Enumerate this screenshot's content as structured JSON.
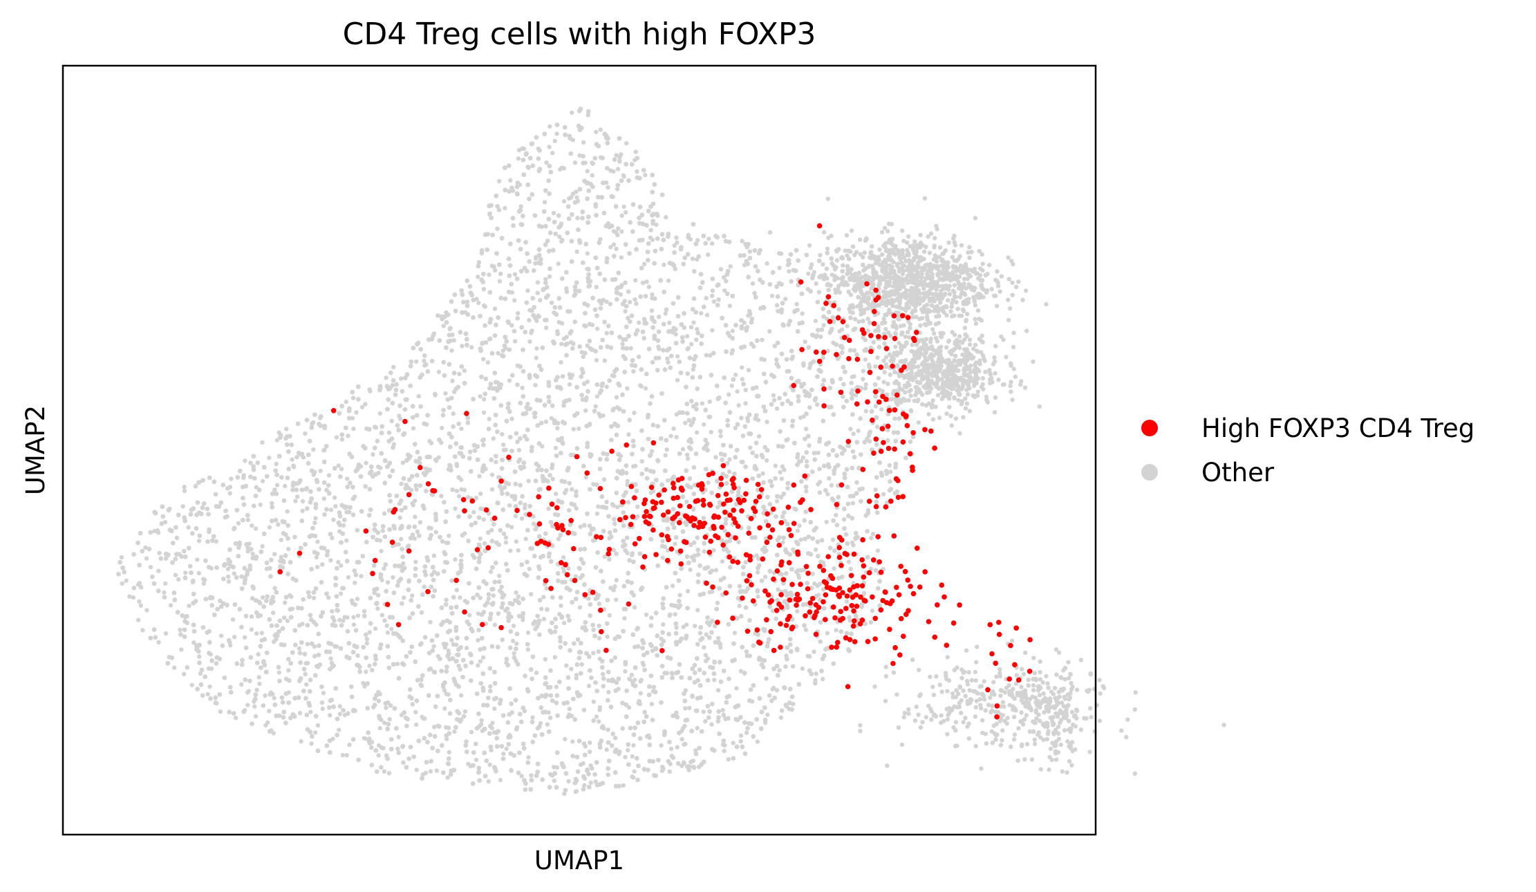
{
  "chart_data": {
    "type": "scatter",
    "title": "CD4 Treg cells with high FOXP3",
    "xlabel": "UMAP1",
    "ylabel": "UMAP2",
    "xlim": [
      0,
      100
    ],
    "ylim": [
      0,
      100
    ],
    "ticks_shown": false,
    "grid": false,
    "legend_position": "right",
    "series": [
      {
        "name": "High FOXP3 CD4 Treg",
        "color": "#ff0000",
        "clusters": [
          {
            "cx": 63,
            "cy": 42,
            "sx": 5,
            "sy": 2.5,
            "n": 120
          },
          {
            "cx": 75,
            "cy": 31,
            "sx": 5,
            "sy": 4,
            "n": 160
          },
          {
            "cx": 77,
            "cy": 64,
            "sx": 3,
            "sy": 5,
            "n": 55
          },
          {
            "cx": 80,
            "cy": 48,
            "sx": 2,
            "sy": 6,
            "n": 35
          },
          {
            "cx": 47,
            "cy": 38,
            "sx": 14,
            "sy": 6,
            "n": 110
          },
          {
            "cx": 91,
            "cy": 22,
            "sx": 1.3,
            "sy": 2.8,
            "n": 15
          }
        ]
      },
      {
        "name": "Other",
        "color": "#d3d3d3",
        "n_points": 22000,
        "hull": [
          [
            5,
            35
          ],
          [
            10,
            44
          ],
          [
            20,
            52
          ],
          [
            33,
            62
          ],
          [
            40,
            74
          ],
          [
            42,
            87
          ],
          [
            50,
            95
          ],
          [
            55,
            90
          ],
          [
            60,
            80
          ],
          [
            70,
            76
          ],
          [
            80,
            76
          ],
          [
            85,
            70
          ],
          [
            81,
            60
          ],
          [
            83,
            50
          ],
          [
            79,
            40
          ],
          [
            80,
            30
          ],
          [
            75,
            22
          ],
          [
            66,
            10
          ],
          [
            50,
            5
          ],
          [
            30,
            8
          ],
          [
            15,
            16
          ],
          [
            8,
            25
          ]
        ],
        "islands": [
          {
            "cx": 82,
            "cy": 72,
            "sx": 4,
            "sy": 3,
            "n": 900
          },
          {
            "cx": 85,
            "cy": 60,
            "sx": 3,
            "sy": 2.5,
            "n": 600
          },
          {
            "cx": 91,
            "cy": 17,
            "sx": 5,
            "sy": 3,
            "n": 330
          },
          {
            "cx": 96,
            "cy": 15,
            "sx": 1.5,
            "sy": 3,
            "n": 120
          }
        ]
      }
    ]
  }
}
